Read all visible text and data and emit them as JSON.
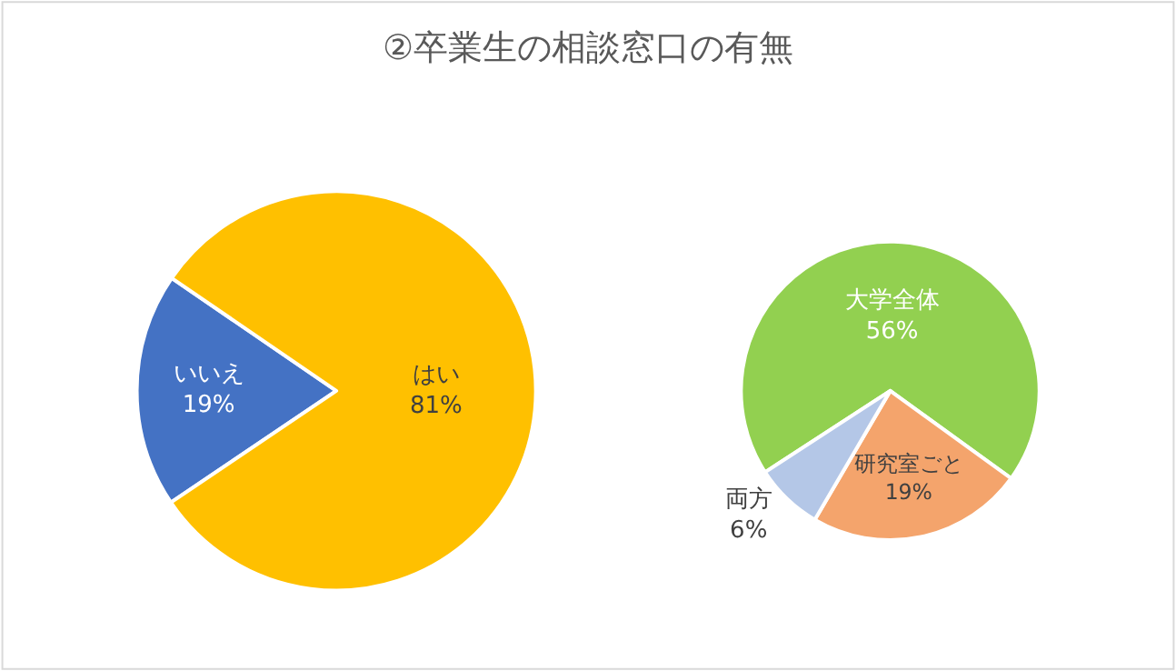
{
  "chart_data": [
    {
      "type": "pie",
      "title": "②卒業生の相談窓口の有無",
      "categories": [
        "いいえ",
        "はい"
      ],
      "values": [
        19,
        81
      ],
      "colors": [
        "#4472c4",
        "#ffc000"
      ],
      "value_labels": [
        "19%",
        "81%"
      ],
      "legend": false
    },
    {
      "type": "pie",
      "categories": [
        "大学全体",
        "研究室ごと",
        "両方"
      ],
      "values": [
        56,
        19,
        6
      ],
      "colors": [
        "#92d050",
        "#f4a46c",
        "#b4c7e7"
      ],
      "value_labels": [
        "56%",
        "19%",
        "6%"
      ],
      "legend": false
    }
  ]
}
